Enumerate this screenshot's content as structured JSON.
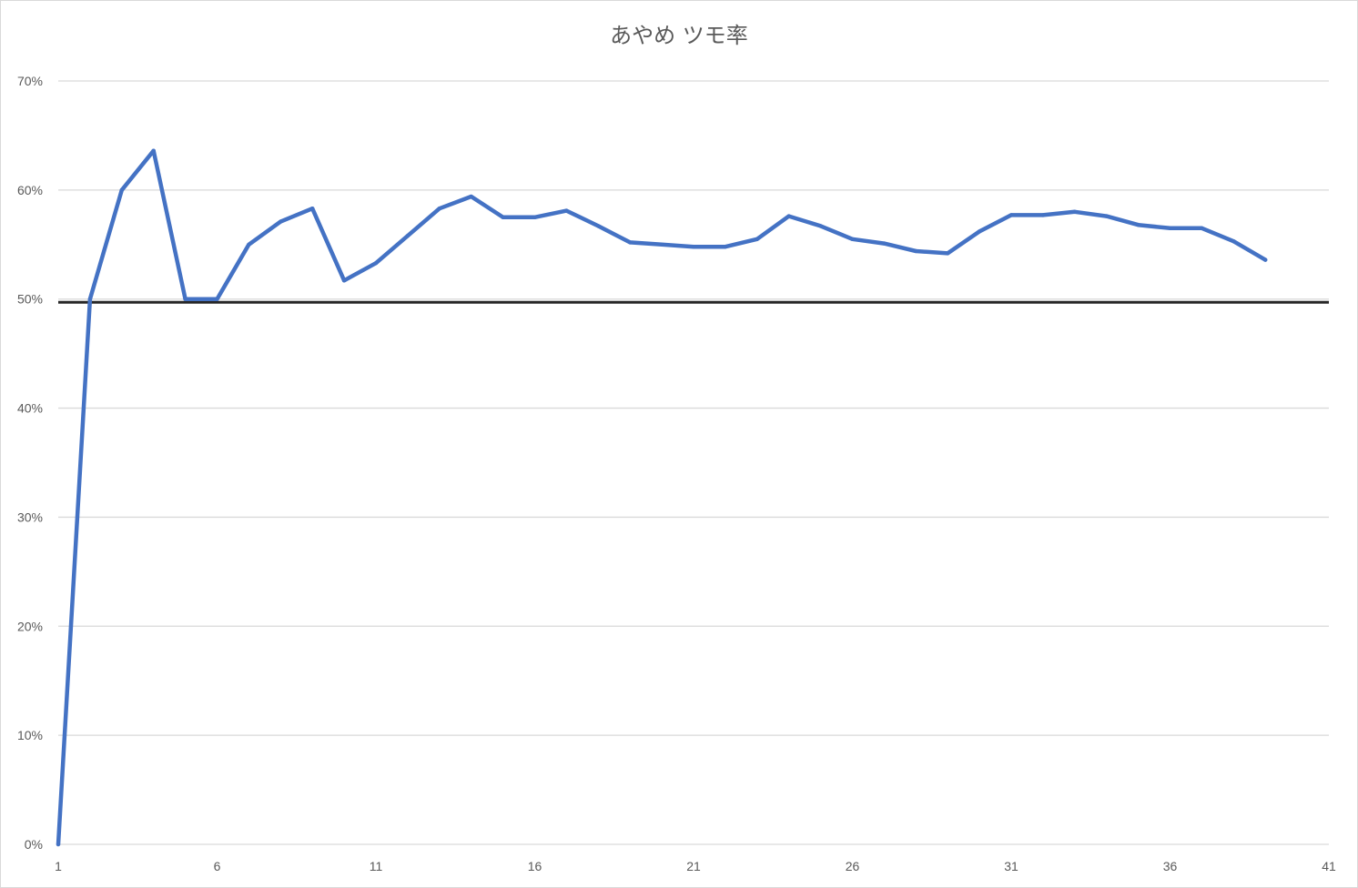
{
  "chart_data": {
    "type": "line",
    "title": "あやめ ツモ率",
    "xlabel": "",
    "ylabel": "",
    "x_ticks": [
      "1",
      "6",
      "11",
      "16",
      "21",
      "26",
      "31",
      "36",
      "41"
    ],
    "y_ticks": [
      "0%",
      "10%",
      "20%",
      "30%",
      "40%",
      "50%",
      "60%",
      "70%"
    ],
    "xlim": [
      1,
      41
    ],
    "ylim": [
      0,
      0.7
    ],
    "grid": true,
    "legend": "none",
    "reference_line": {
      "y": 0.497,
      "color": "#262626"
    },
    "series": [
      {
        "color": "#4472c4",
        "x": [
          1,
          2,
          3,
          4,
          5,
          6,
          7,
          8,
          9,
          10,
          11,
          12,
          13,
          14,
          15,
          16,
          17,
          18,
          19,
          20,
          21,
          22,
          23,
          24,
          25,
          26,
          27,
          28,
          29,
          30,
          31,
          32,
          33,
          34,
          35,
          36,
          37,
          38,
          39
        ],
        "values": [
          0,
          0.5,
          0.6,
          0.636,
          0.5,
          0.5,
          0.55,
          0.571,
          0.583,
          0.517,
          0.533,
          0.558,
          0.583,
          0.594,
          0.575,
          0.575,
          0.581,
          0.567,
          0.552,
          0.55,
          0.548,
          0.548,
          0.555,
          0.576,
          0.567,
          0.555,
          0.551,
          0.544,
          0.542,
          0.562,
          0.577,
          0.577,
          0.58,
          0.576,
          0.568,
          0.565,
          0.565,
          0.553,
          0.536
        ]
      }
    ]
  }
}
